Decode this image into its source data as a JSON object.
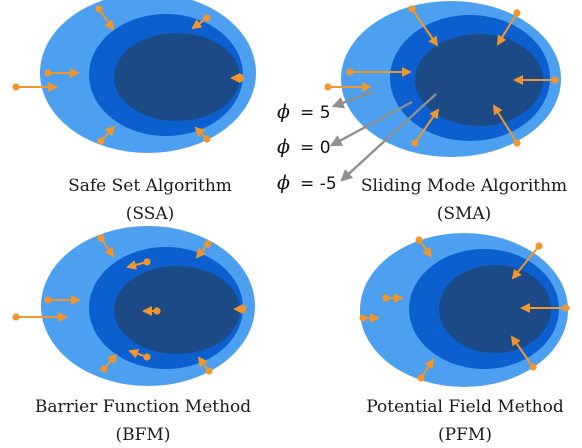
{
  "colors": {
    "outer": "#4d9ff0",
    "middle": "#0b5fcf",
    "inner": "#1c4a86",
    "arrow": "#f0962d",
    "pointer": "#8f8f8f"
  },
  "panels": [
    {
      "id": "ssa",
      "caption_line1": "Safe Set Algorithm",
      "caption_line2": "(SSA)"
    },
    {
      "id": "sma",
      "caption_line1": "Sliding Mode Algorithm",
      "caption_line2": "(SMA)"
    },
    {
      "id": "bfm",
      "caption_line1": "Barrier Function Method",
      "caption_line2": "(BFM)"
    },
    {
      "id": "pfm",
      "caption_line1": "Potential Field Method",
      "caption_line2": "(PFM)"
    }
  ],
  "phi_labels": {
    "symbol": "ϕ",
    "level_5": "= 5",
    "level_0": "= 0",
    "level_neg5": "= -5"
  }
}
